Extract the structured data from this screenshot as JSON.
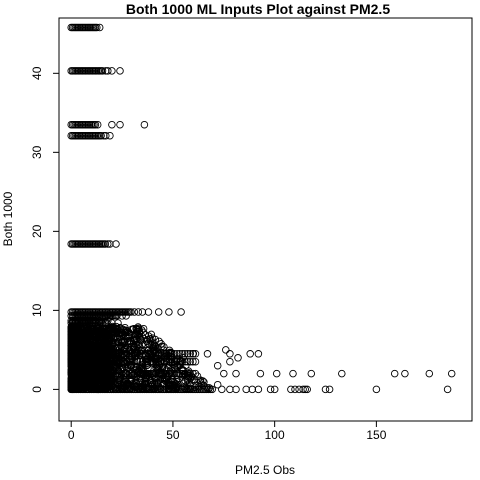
{
  "chart_data": {
    "type": "scatter",
    "title": "Both 1000 ML Inputs Plot against PM2.5",
    "xlabel": "PM2.5 Obs",
    "ylabel": "Both 1000",
    "xlim": [
      -6,
      197
    ],
    "ylim": [
      -4,
      47
    ],
    "xticks": [
      0,
      50,
      100,
      150
    ],
    "yticks": [
      0,
      10,
      20,
      30,
      40
    ],
    "grid": false,
    "legend": "none",
    "marker": "open-circle",
    "color": "#000000",
    "bands": [
      {
        "y": 45.8,
        "xmin": 0,
        "xmax": 13,
        "extra": [
          14
        ]
      },
      {
        "y": 40.3,
        "xmin": 0,
        "xmax": 16,
        "extra": [
          17,
          18,
          20,
          24
        ]
      },
      {
        "y": 33.5,
        "xmin": 0,
        "xmax": 12,
        "extra": [
          13,
          20,
          24,
          36
        ]
      },
      {
        "y": 32.1,
        "xmin": 0,
        "xmax": 15,
        "extra": [
          16,
          17,
          19
        ]
      },
      {
        "y": 18.4,
        "xmin": 0,
        "xmax": 17,
        "extra": [
          18,
          19,
          22
        ]
      },
      {
        "y": 9.8,
        "xmin": 0,
        "xmax": 30,
        "extra": [
          31,
          33,
          35,
          38,
          43,
          48,
          54
        ]
      },
      {
        "y": 9.3,
        "xmin": 0,
        "xmax": 23,
        "extra": [
          25,
          27
        ]
      },
      {
        "y": 8.7,
        "xmin": 0,
        "xmax": 12,
        "extra": [
          14,
          18
        ]
      },
      {
        "y": 8.4,
        "xmin": 0,
        "xmax": 18,
        "extra": [
          20,
          23
        ]
      }
    ],
    "dense_region": {
      "xmax_at_y0": 70,
      "xmax_at_y8": 35,
      "ymax": 8
    },
    "outliers": [
      [
        74,
        0
      ],
      [
        78,
        0
      ],
      [
        81,
        0
      ],
      [
        86,
        0
      ],
      [
        89,
        0
      ],
      [
        92,
        0
      ],
      [
        98,
        0
      ],
      [
        100,
        0
      ],
      [
        108,
        0
      ],
      [
        110,
        0
      ],
      [
        112,
        0
      ],
      [
        114,
        0
      ],
      [
        115,
        0
      ],
      [
        116,
        0
      ],
      [
        125,
        0
      ],
      [
        127,
        0
      ],
      [
        150,
        0
      ],
      [
        185,
        0
      ],
      [
        75,
        2
      ],
      [
        81,
        2
      ],
      [
        93,
        2
      ],
      [
        101,
        2
      ],
      [
        109,
        2
      ],
      [
        118,
        2
      ],
      [
        133,
        2
      ],
      [
        159,
        2
      ],
      [
        164,
        2
      ],
      [
        176,
        2
      ],
      [
        187,
        2
      ],
      [
        78,
        3.5
      ],
      [
        82,
        4
      ],
      [
        88,
        4.5
      ],
      [
        92,
        4.5
      ],
      [
        76,
        5
      ],
      [
        72,
        3
      ],
      [
        48,
        3
      ],
      [
        55,
        4
      ],
      [
        60,
        4.5
      ],
      [
        67,
        4.5
      ],
      [
        78,
        4.5
      ],
      [
        72,
        0.6
      ]
    ]
  }
}
